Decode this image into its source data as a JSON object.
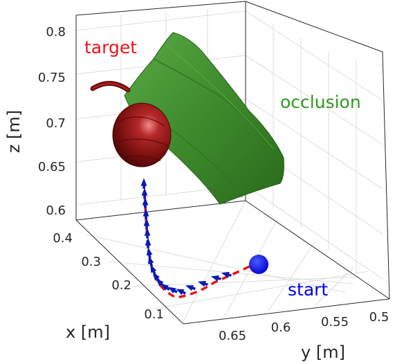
{
  "axes": {
    "xlabel": "x [m]",
    "ylabel": "y [m]",
    "zlabel": "z [m]",
    "x_ticks": [
      "0.1",
      "0.2",
      "0.3",
      "0.4"
    ],
    "y_ticks": [
      "0.65",
      "0.6",
      "0.55",
      "0.5"
    ],
    "z_ticks": [
      "0.6",
      "0.65",
      "0.7",
      "0.75",
      "0.8"
    ]
  },
  "annotations": {
    "target": "target",
    "occlusion": "occlusion",
    "start": "start"
  },
  "colors": {
    "target_text": "#e8141c",
    "occlusion_text": "#2e9a1e",
    "start_text": "#0000e6",
    "fruit": "#8c1a1a",
    "leaf": "#3c8c2a",
    "trajectory": "#e01818",
    "arrows": "#0a1ab4",
    "start_marker": "#0000ff"
  },
  "icons": {
    "start_marker": "start-sphere-icon",
    "fruit": "sweet-pepper-icon",
    "leaf": "occluding-leaf-icon"
  }
}
